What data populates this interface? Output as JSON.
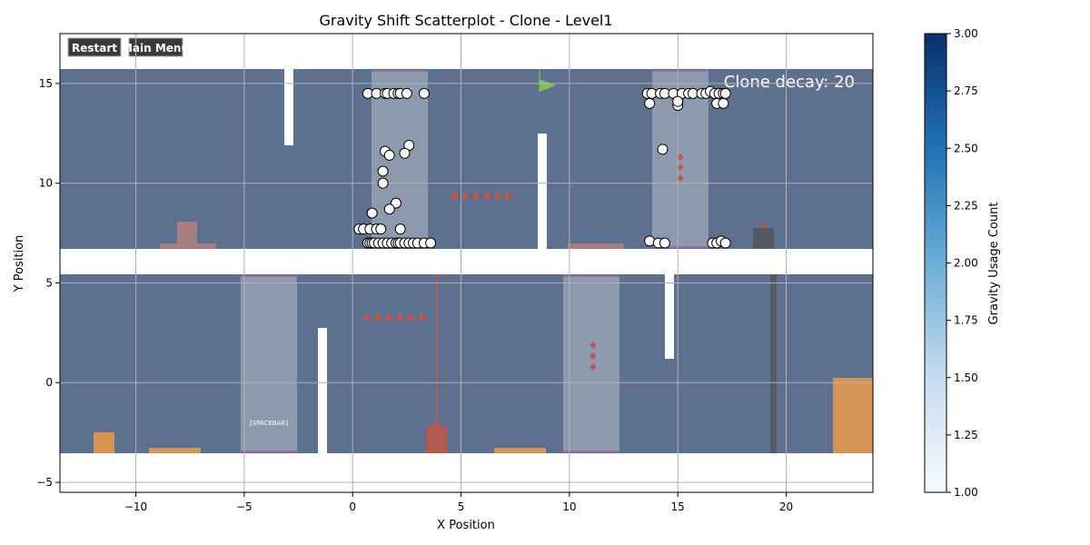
{
  "chart_data": {
    "type": "scatter",
    "title": "Gravity Shift Scatterplot - Clone - Level1",
    "xlabel": "X Position",
    "ylabel": "Y Position",
    "xlim": [
      -13.5,
      24
    ],
    "ylim": [
      -5.5,
      17.5
    ],
    "x_ticks": [
      -10,
      -5,
      0,
      5,
      10,
      15,
      20
    ],
    "y_ticks": [
      -5,
      0,
      5,
      10,
      15
    ],
    "grid": true,
    "background_image": {
      "buttons": [
        "Restart",
        "Main Menu"
      ],
      "hud_text": "Clone decay: 20",
      "hint_text": "[SPACEBAR]"
    },
    "colorbar": {
      "label": "Gravity Usage Count",
      "range": [
        1.0,
        3.0
      ],
      "ticks": [
        "1.00",
        "1.25",
        "1.50",
        "1.75",
        "2.00",
        "2.25",
        "2.50",
        "2.75",
        "3.00"
      ],
      "colormap": "Blues"
    },
    "points": [
      {
        "x": 0.7,
        "y": 14.5
      },
      {
        "x": 1.1,
        "y": 14.5
      },
      {
        "x": 1.5,
        "y": 14.5
      },
      {
        "x": 1.6,
        "y": 14.5
      },
      {
        "x": 1.9,
        "y": 14.5
      },
      {
        "x": 2.1,
        "y": 14.5
      },
      {
        "x": 2.2,
        "y": 14.5
      },
      {
        "x": 2.5,
        "y": 14.5
      },
      {
        "x": 3.3,
        "y": 14.5
      },
      {
        "x": 2.6,
        "y": 11.9
      },
      {
        "x": 1.5,
        "y": 11.6
      },
      {
        "x": 1.7,
        "y": 11.4
      },
      {
        "x": 2.4,
        "y": 11.5
      },
      {
        "x": 1.4,
        "y": 10.6
      },
      {
        "x": 1.4,
        "y": 10.0
      },
      {
        "x": 2.0,
        "y": 9.0
      },
      {
        "x": 1.7,
        "y": 8.7
      },
      {
        "x": 0.9,
        "y": 8.5
      },
      {
        "x": 0.3,
        "y": 7.7
      },
      {
        "x": 0.5,
        "y": 7.7
      },
      {
        "x": 0.8,
        "y": 7.7
      },
      {
        "x": 1.1,
        "y": 7.7
      },
      {
        "x": 1.3,
        "y": 7.7
      },
      {
        "x": 2.2,
        "y": 7.7
      },
      {
        "x": 0.7,
        "y": 7.0
      },
      {
        "x": 0.8,
        "y": 7.0
      },
      {
        "x": 0.9,
        "y": 7.0
      },
      {
        "x": 1.0,
        "y": 7.0
      },
      {
        "x": 1.2,
        "y": 7.0
      },
      {
        "x": 1.4,
        "y": 7.0
      },
      {
        "x": 1.6,
        "y": 7.0
      },
      {
        "x": 1.8,
        "y": 7.0
      },
      {
        "x": 2.0,
        "y": 7.0
      },
      {
        "x": 2.1,
        "y": 7.0
      },
      {
        "x": 2.2,
        "y": 7.0
      },
      {
        "x": 2.4,
        "y": 7.0
      },
      {
        "x": 2.6,
        "y": 7.0
      },
      {
        "x": 2.8,
        "y": 7.0
      },
      {
        "x": 3.0,
        "y": 7.0
      },
      {
        "x": 3.3,
        "y": 7.0
      },
      {
        "x": 3.6,
        "y": 7.0
      },
      {
        "x": 13.6,
        "y": 14.5
      },
      {
        "x": 13.8,
        "y": 14.5
      },
      {
        "x": 14.2,
        "y": 14.5
      },
      {
        "x": 14.4,
        "y": 14.5
      },
      {
        "x": 14.8,
        "y": 14.5
      },
      {
        "x": 15.2,
        "y": 14.5
      },
      {
        "x": 15.5,
        "y": 14.5
      },
      {
        "x": 15.7,
        "y": 14.5
      },
      {
        "x": 16.1,
        "y": 14.5
      },
      {
        "x": 16.3,
        "y": 14.5
      },
      {
        "x": 16.5,
        "y": 14.6
      },
      {
        "x": 16.7,
        "y": 14.5
      },
      {
        "x": 16.9,
        "y": 14.5
      },
      {
        "x": 17.1,
        "y": 14.5
      },
      {
        "x": 17.2,
        "y": 14.5
      },
      {
        "x": 13.7,
        "y": 14.0
      },
      {
        "x": 15.0,
        "y": 13.9
      },
      {
        "x": 15.0,
        "y": 14.1
      },
      {
        "x": 16.8,
        "y": 14.0
      },
      {
        "x": 17.1,
        "y": 14.0
      },
      {
        "x": 14.3,
        "y": 11.7
      },
      {
        "x": 13.7,
        "y": 7.1
      },
      {
        "x": 14.1,
        "y": 7.0
      },
      {
        "x": 14.4,
        "y": 7.0
      },
      {
        "x": 16.6,
        "y": 7.0
      },
      {
        "x": 16.8,
        "y": 7.0
      },
      {
        "x": 17.0,
        "y": 7.1
      },
      {
        "x": 17.2,
        "y": 7.0
      }
    ]
  }
}
